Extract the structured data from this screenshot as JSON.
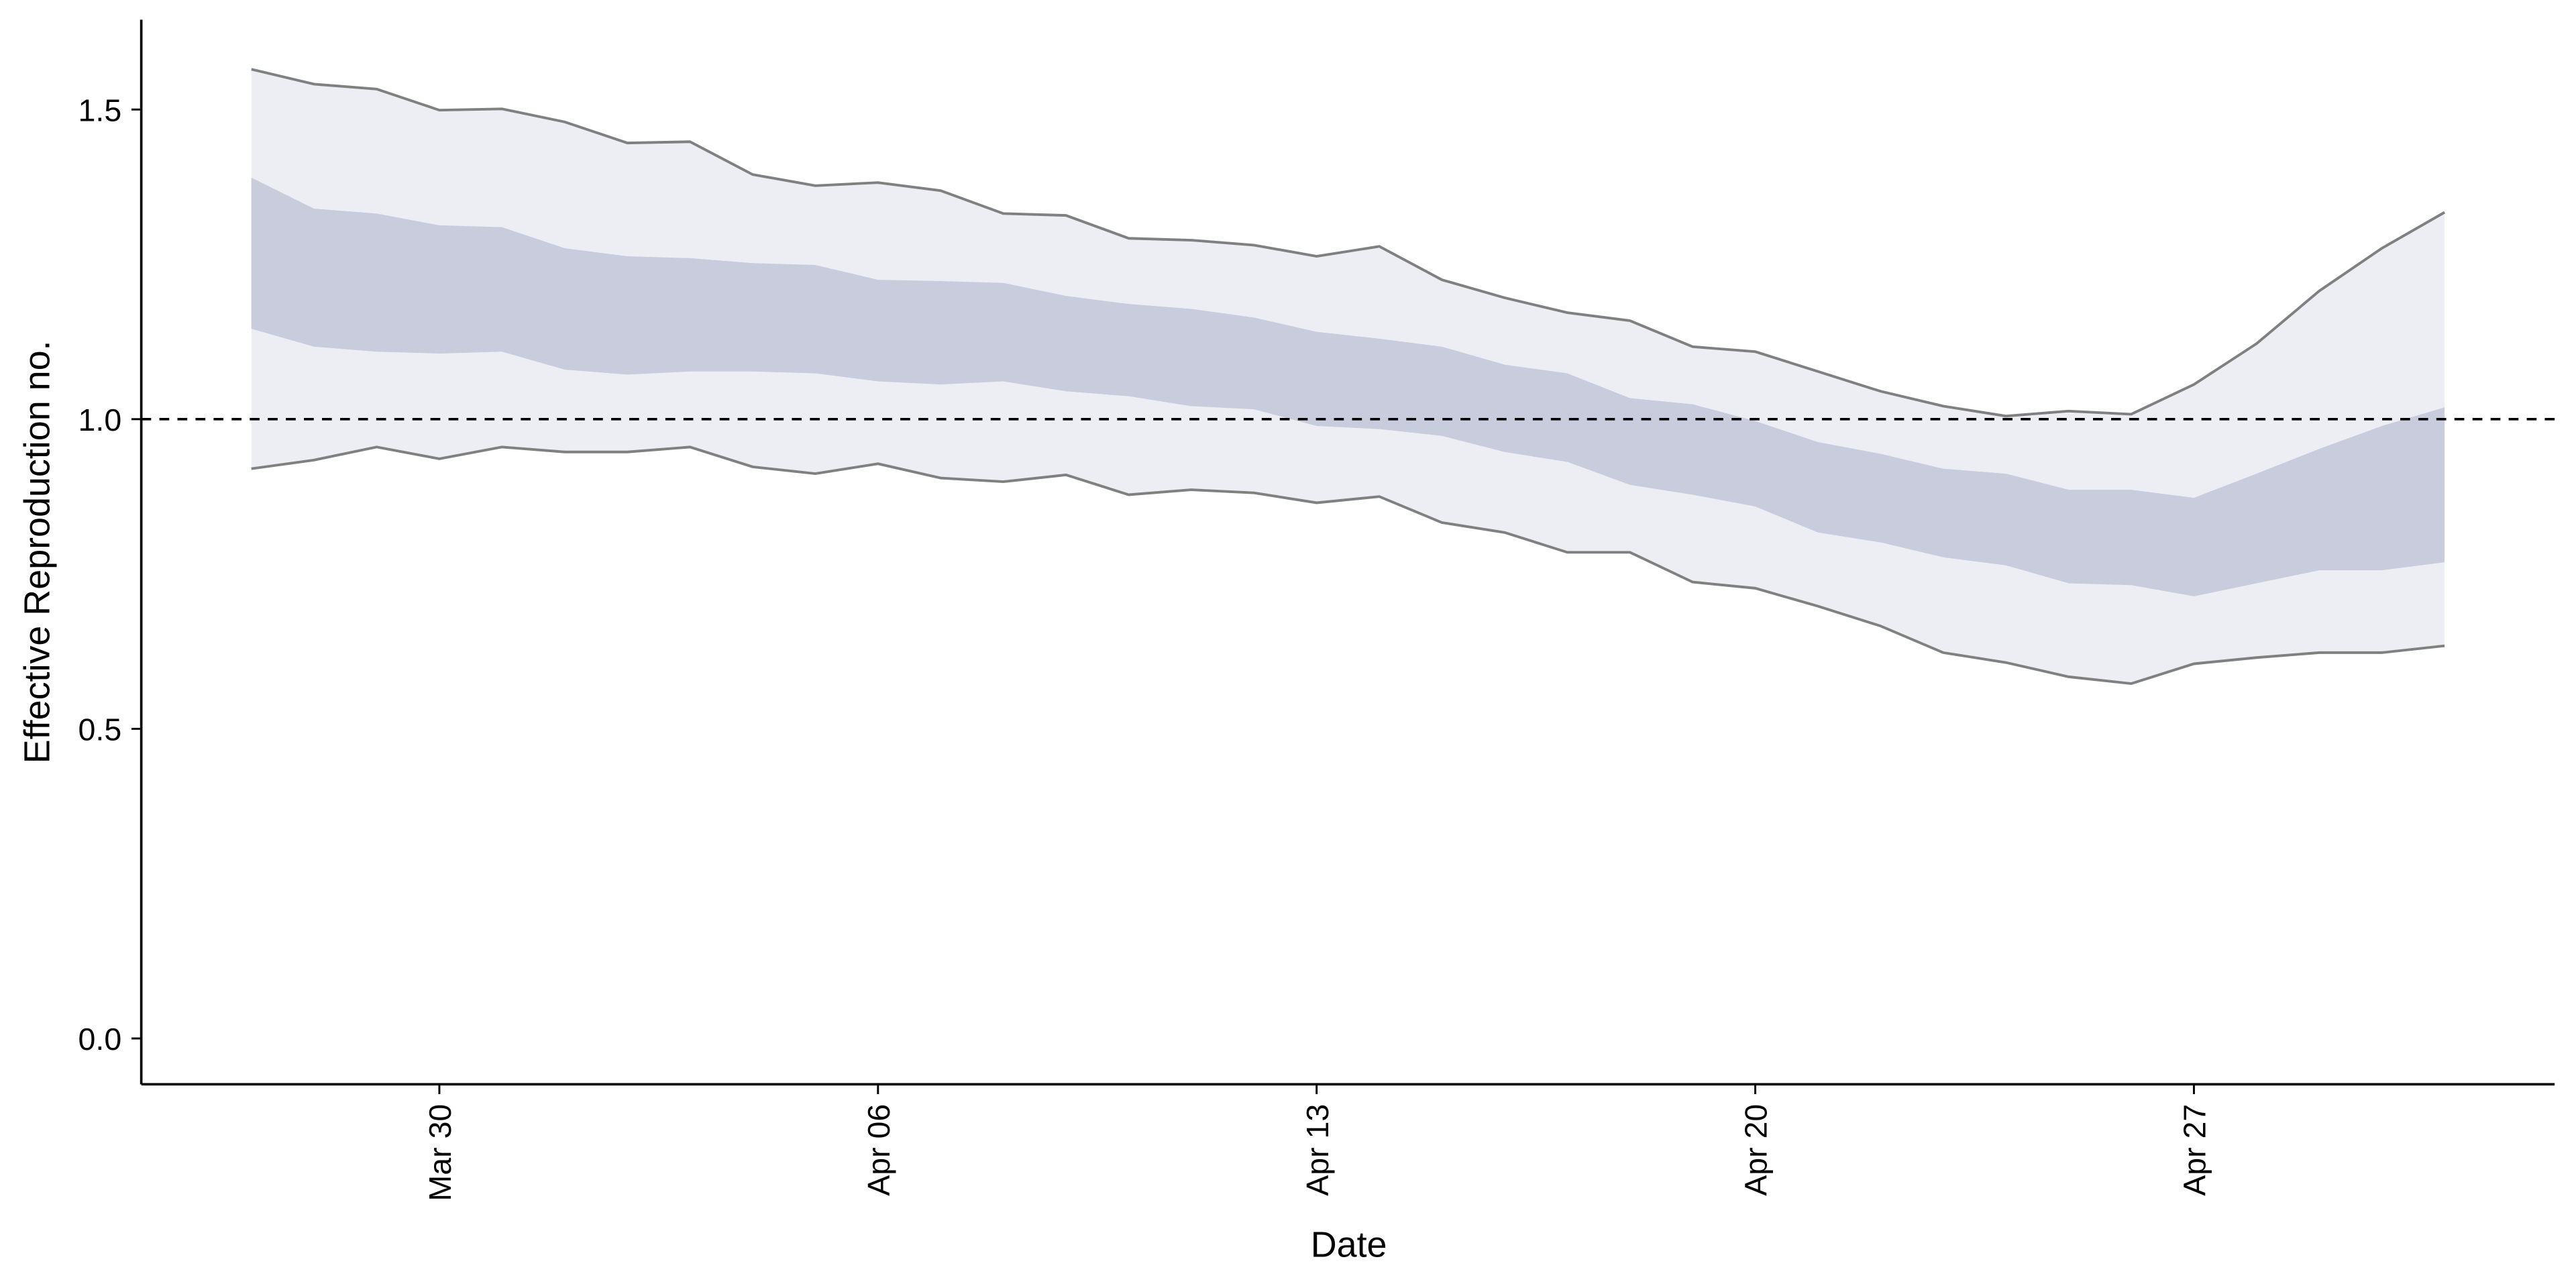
{
  "chart_data": {
    "type": "ribbon",
    "x_label": "Date",
    "y_label": "Effective Reproduction no.",
    "x": [
      "Mar 27",
      "Mar 28",
      "Mar 29",
      "Mar 30",
      "Mar 31",
      "Apr 01",
      "Apr 02",
      "Apr 03",
      "Apr 04",
      "Apr 05",
      "Apr 06",
      "Apr 07",
      "Apr 08",
      "Apr 09",
      "Apr 10",
      "Apr 11",
      "Apr 12",
      "Apr 13",
      "Apr 14",
      "Apr 15",
      "Apr 16",
      "Apr 17",
      "Apr 18",
      "Apr 19",
      "Apr 20",
      "Apr 21",
      "Apr 22",
      "Apr 23",
      "Apr 24",
      "Apr 25",
      "Apr 26",
      "Apr 27",
      "Apr 28",
      "Apr 29",
      "Apr 30",
      "May 01"
    ],
    "xticks": [
      "Mar 30",
      "Apr 06",
      "Apr 13",
      "Apr 20",
      "Apr 27"
    ],
    "outer": {
      "color": "#eceef3",
      "line_color": "#808080",
      "upper": [
        1.565,
        1.541,
        1.533,
        1.499,
        1.501,
        1.48,
        1.446,
        1.448,
        1.395,
        1.377,
        1.382,
        1.369,
        1.332,
        1.329,
        1.292,
        1.289,
        1.281,
        1.263,
        1.279,
        1.225,
        1.196,
        1.172,
        1.159,
        1.117,
        1.109,
        1.077,
        1.045,
        1.021,
        1.005,
        1.013,
        1.008,
        1.056,
        1.122,
        1.207,
        1.276,
        1.334
      ],
      "lower": [
        0.92,
        0.934,
        0.955,
        0.936,
        0.955,
        0.947,
        0.947,
        0.955,
        0.923,
        0.912,
        0.928,
        0.905,
        0.899,
        0.91,
        0.878,
        0.886,
        0.881,
        0.865,
        0.875,
        0.833,
        0.817,
        0.785,
        0.785,
        0.737,
        0.727,
        0.698,
        0.666,
        0.623,
        0.607,
        0.584,
        0.573,
        0.605,
        0.615,
        0.623,
        0.623,
        0.634
      ]
    },
    "inner": {
      "color": "#c8ccdc",
      "upper": [
        1.39,
        1.34,
        1.332,
        1.313,
        1.31,
        1.276,
        1.263,
        1.26,
        1.252,
        1.249,
        1.225,
        1.223,
        1.22,
        1.199,
        1.186,
        1.178,
        1.164,
        1.141,
        1.13,
        1.117,
        1.088,
        1.074,
        1.034,
        1.024,
        0.997,
        0.963,
        0.944,
        0.92,
        0.912,
        0.886,
        0.886,
        0.873,
        0.912,
        0.952,
        0.989,
        1.019
      ],
      "lower": [
        1.146,
        1.117,
        1.109,
        1.106,
        1.109,
        1.08,
        1.072,
        1.077,
        1.077,
        1.074,
        1.061,
        1.056,
        1.061,
        1.045,
        1.037,
        1.021,
        1.016,
        0.989,
        0.984,
        0.973,
        0.947,
        0.931,
        0.894,
        0.878,
        0.859,
        0.817,
        0.801,
        0.777,
        0.764,
        0.735,
        0.732,
        0.714,
        0.735,
        0.756,
        0.756,
        0.769
      ]
    },
    "hline": 1,
    "ylim": [
      -0.074,
      1.645
    ],
    "yticks": [
      {
        "value": 0,
        "label": "0.0"
      },
      {
        "value": 0.5,
        "label": "0.5"
      },
      {
        "value": 1,
        "label": "1.0"
      },
      {
        "value": 1.5,
        "label": "1.5"
      }
    ]
  }
}
